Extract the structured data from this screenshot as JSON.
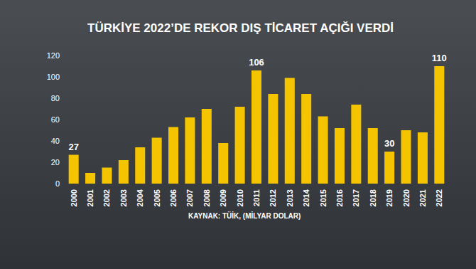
{
  "chart_data": {
    "type": "bar",
    "title": "TÜRKİYE 2022’DE REKOR DIŞ TİCARET AÇIĞI VERDİ",
    "subtitle": "KAYNAK: TÜİK, (MİLYAR DOLAR)",
    "categories": [
      "2000",
      "2001",
      "2002",
      "2003",
      "2004",
      "2005",
      "2006",
      "2007",
      "2008",
      "2009",
      "2010",
      "2011",
      "2012",
      "2013",
      "2014",
      "2015",
      "2016",
      "2017",
      "2018",
      "2019",
      "2020",
      "2021",
      "2022"
    ],
    "values": [
      27,
      10,
      15,
      22,
      34,
      43,
      53,
      62,
      70,
      38,
      72,
      106,
      84,
      99,
      84,
      63,
      52,
      74,
      52,
      30,
      50,
      48,
      110
    ],
    "value_labels": [
      "27",
      null,
      null,
      null,
      null,
      null,
      null,
      null,
      null,
      null,
      null,
      "106",
      null,
      null,
      null,
      null,
      null,
      null,
      null,
      "30",
      null,
      null,
      "110"
    ],
    "color": "#f5c400",
    "ylim": [
      0,
      120
    ],
    "yticks": [
      0,
      20,
      40,
      60,
      80,
      100,
      120
    ],
    "grid": false
  }
}
